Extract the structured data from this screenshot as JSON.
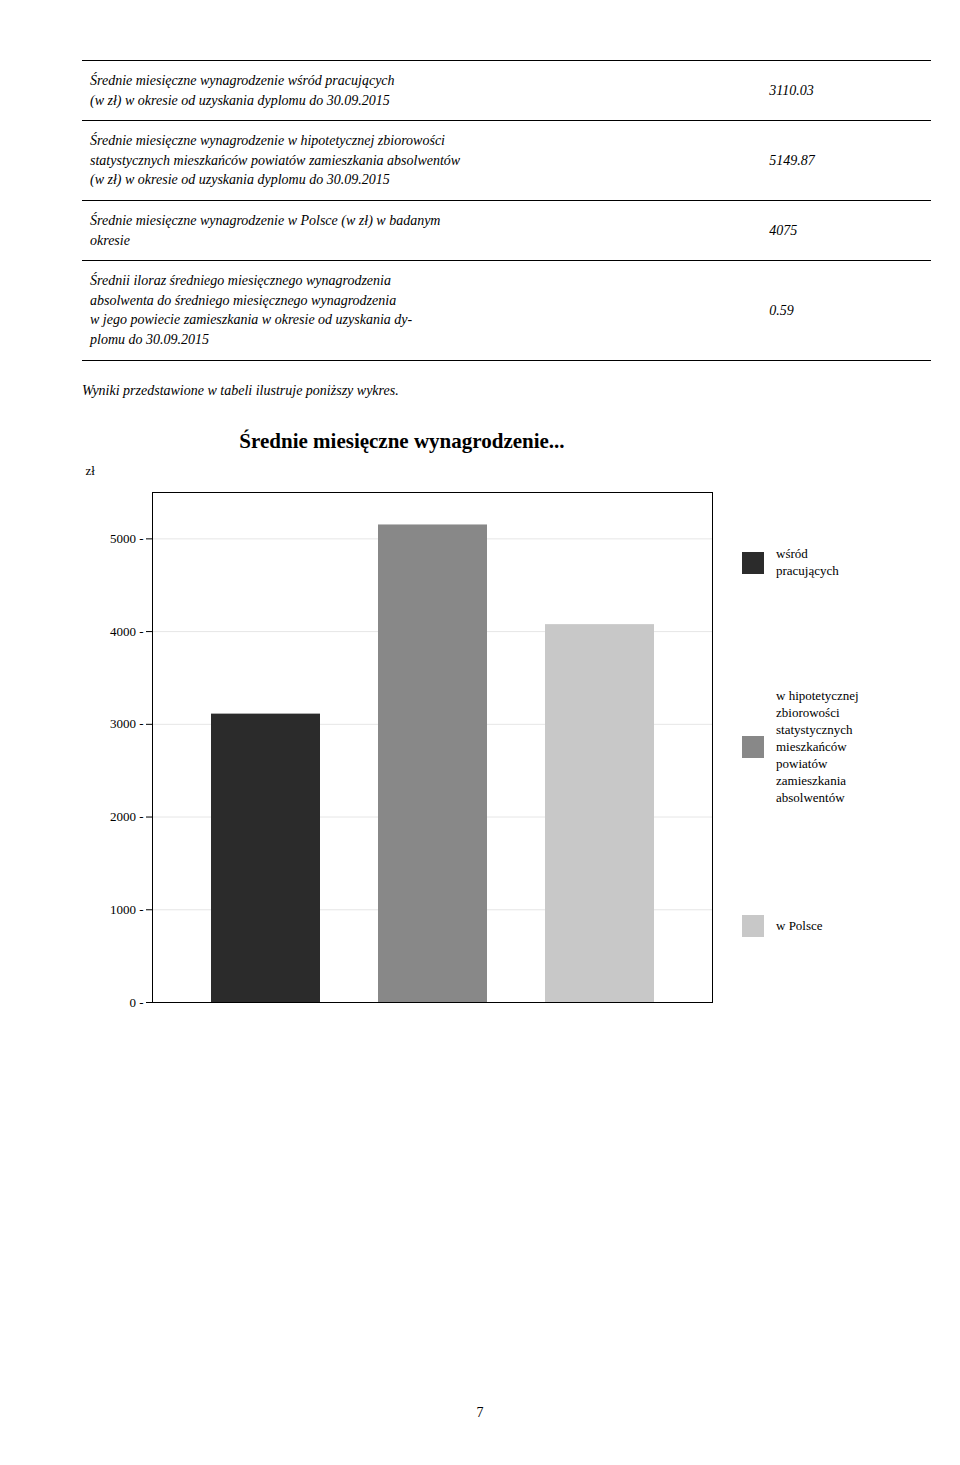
{
  "table": [
    {
      "label": "Średnie miesięczne wynagrodzenie wśród pracujących\n(w zł) w okresie od uzyskania dyplomu do 30.09.2015",
      "value": "3110.03"
    },
    {
      "label": "Średnie miesięczne wynagrodzenie w hipotetycznej zbiorowości\nstatystycznych mieszkańców powiatów zamieszkania absolwentów\n(w zł) w okresie od uzyskania dyplomu do 30.09.2015",
      "value": "5149.87"
    },
    {
      "label": "Średnie miesięczne wynagrodzenie w Polsce (w zł) w badanym\nokresie",
      "value": "4075"
    },
    {
      "label": "Średnii iloraz średniego miesięcznego wynagrodzenia\nabsolwenta do średniego miesięcznego wynagrodzenia\nw jego powiecie zamieszkania w okresie od uzyskania dy-\nplomu do 30.09.2015",
      "value": "0.59"
    }
  ],
  "note": "Wyniki przedstawione w tabeli ilustruje poniższy wykres.",
  "page_number": "7",
  "chart_data": {
    "type": "bar",
    "title": "Średnie miesięczne wynagrodzenie...",
    "ylabel": "zł",
    "categories": [
      null
    ],
    "series": [
      {
        "name": "wśród\npracujących",
        "color": "#2b2b2b",
        "values": [
          3110.03
        ]
      },
      {
        "name": "w hipotetycznej\nzbiorowości\nstatystycznych\nmieszkańców\npowiatów\nzamieszkania\nabsolwentów",
        "color": "#888888",
        "values": [
          5149.87
        ]
      },
      {
        "name": "w Polsce",
        "color": "#c8c8c8",
        "values": [
          4075
        ]
      }
    ],
    "ylim": [
      0,
      5500
    ],
    "yticks": [
      {
        "value": 0,
        "label": "0 -"
      },
      {
        "value": 1000,
        "label": "1000 -"
      },
      {
        "value": 2000,
        "label": "2000 -"
      },
      {
        "value": 3000,
        "label": "3000 -"
      },
      {
        "value": 4000,
        "label": "4000 -"
      },
      {
        "value": 5000,
        "label": "5000 -"
      }
    ],
    "grid": true,
    "tick_labels": "y"
  }
}
